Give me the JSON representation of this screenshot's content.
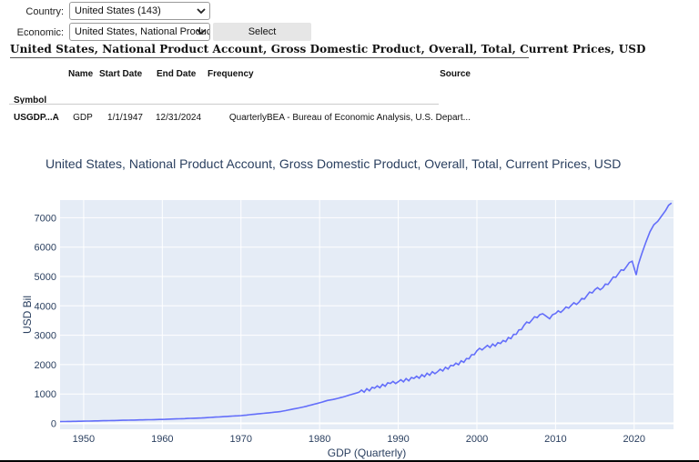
{
  "form": {
    "country_label": "Country:",
    "country_value": "United States (143)",
    "economic_label": "Economic:",
    "economic_value": "United States, National Product",
    "select_button": "Select"
  },
  "dataset_title": "United States, National Product Account, Gross Domestic Product, Overall, Total, Current Prices, USD",
  "table": {
    "headers": {
      "symbol": "Symbol",
      "name": "Name",
      "start": "Start Date",
      "end": "End Date",
      "frequency": "Frequency",
      "source": "Source"
    },
    "row": {
      "symbol": "USGDP...A",
      "name": "GDP",
      "start": "1/1/1947",
      "end": "12/31/2024",
      "frequency": "Quarterly",
      "source": "BEA - Bureau of Economic Analysis, U.S. Depart..."
    }
  },
  "colors": {
    "plot_bg": "#e5ecf6",
    "line": "#636efa",
    "axis_text": "#2a3f5f"
  },
  "chart_data": {
    "type": "line",
    "title": "United States, National Product Account, Gross Domestic Product, Overall, Total, Current Prices, USD",
    "xlabel": "GDP (Quarterly)",
    "ylabel": "USD Bil",
    "xlim": [
      1947,
      2025
    ],
    "ylim": [
      -200,
      7600
    ],
    "x_ticks": [
      1950,
      1960,
      1970,
      1980,
      1990,
      2000,
      2010,
      2020
    ],
    "y_ticks": [
      0,
      1000,
      2000,
      3000,
      4000,
      5000,
      6000,
      7000
    ],
    "grid": true,
    "series": [
      {
        "x": [
          1947,
          1950,
          1955,
          1960,
          1965,
          1970,
          1975,
          1978,
          1980,
          1981,
          1982,
          1983,
          1985,
          1987,
          1989,
          1990,
          1992,
          1995,
          1997,
          1999,
          2000,
          2001,
          2003,
          2005,
          2006,
          2007,
          2008,
          2008.75,
          2009.25,
          2010,
          2011,
          2012,
          2013,
          2014,
          2015,
          2016,
          2017,
          2018,
          2019,
          2019.75,
          2020.25,
          2020.5,
          2020.75,
          2021,
          2021.5,
          2022,
          2022.5,
          2023,
          2023.5,
          2024,
          2024.75
        ],
        "y": [
          60,
          75,
          105,
          135,
          185,
          265,
          400,
          560,
          700,
          780,
          830,
          900,
          1060,
          1200,
          1360,
          1420,
          1530,
          1760,
          1960,
          2200,
          2470,
          2580,
          2720,
          3030,
          3340,
          3520,
          3700,
          3660,
          3560,
          3740,
          3860,
          4020,
          4130,
          4350,
          4550,
          4610,
          4850,
          5100,
          5330,
          5520,
          5050,
          5380,
          5600,
          5800,
          6180,
          6520,
          6760,
          6880,
          7060,
          7250,
          7500
        ]
      }
    ]
  }
}
